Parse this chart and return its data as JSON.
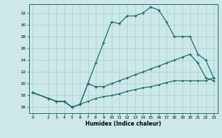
{
  "xlabel": "Humidex (Indice chaleur)",
  "bg_color": "#cce8e8",
  "grid_color": "#aacccc",
  "line_color": "#1a6b6b",
  "xlim": [
    -0.5,
    23.5
  ],
  "ylim": [
    15,
    33.5
  ],
  "xticks": [
    0,
    2,
    3,
    4,
    5,
    6,
    7,
    8,
    9,
    10,
    11,
    12,
    13,
    14,
    15,
    16,
    17,
    18,
    19,
    20,
    21,
    22,
    23
  ],
  "yticks": [
    16,
    18,
    20,
    22,
    24,
    26,
    28,
    30,
    32
  ],
  "line1_x": [
    0,
    2,
    3,
    4,
    5,
    6,
    7,
    8,
    9,
    10,
    11,
    12,
    13,
    14,
    15,
    16,
    17,
    18,
    19,
    20,
    21,
    22,
    23
  ],
  "line1_y": [
    18.5,
    17.5,
    17.0,
    17.0,
    16.0,
    16.5,
    20.0,
    23.5,
    27.0,
    30.5,
    30.2,
    31.5,
    31.5,
    32.0,
    33.0,
    32.5,
    30.5,
    28.0,
    28.0,
    28.0,
    25.0,
    24.0,
    21.0
  ],
  "line2_x": [
    0,
    2,
    3,
    4,
    5,
    6,
    7,
    8,
    9,
    10,
    11,
    12,
    13,
    14,
    15,
    16,
    17,
    18,
    19,
    20,
    21,
    22,
    23
  ],
  "line2_y": [
    18.5,
    17.5,
    17.0,
    17.0,
    16.0,
    16.5,
    20.0,
    19.5,
    19.5,
    20.0,
    20.5,
    21.0,
    21.5,
    22.0,
    22.5,
    23.0,
    23.5,
    24.0,
    24.5,
    25.0,
    23.5,
    21.0,
    20.5
  ],
  "line3_x": [
    0,
    2,
    3,
    4,
    5,
    6,
    7,
    8,
    9,
    10,
    11,
    12,
    13,
    14,
    15,
    16,
    17,
    18,
    19,
    20,
    21,
    22,
    23
  ],
  "line3_y": [
    18.5,
    17.5,
    17.0,
    17.0,
    16.0,
    16.5,
    17.0,
    17.5,
    17.8,
    18.0,
    18.3,
    18.7,
    19.0,
    19.3,
    19.5,
    19.8,
    20.2,
    20.5,
    20.5,
    20.5,
    20.5,
    20.5,
    21.0
  ]
}
